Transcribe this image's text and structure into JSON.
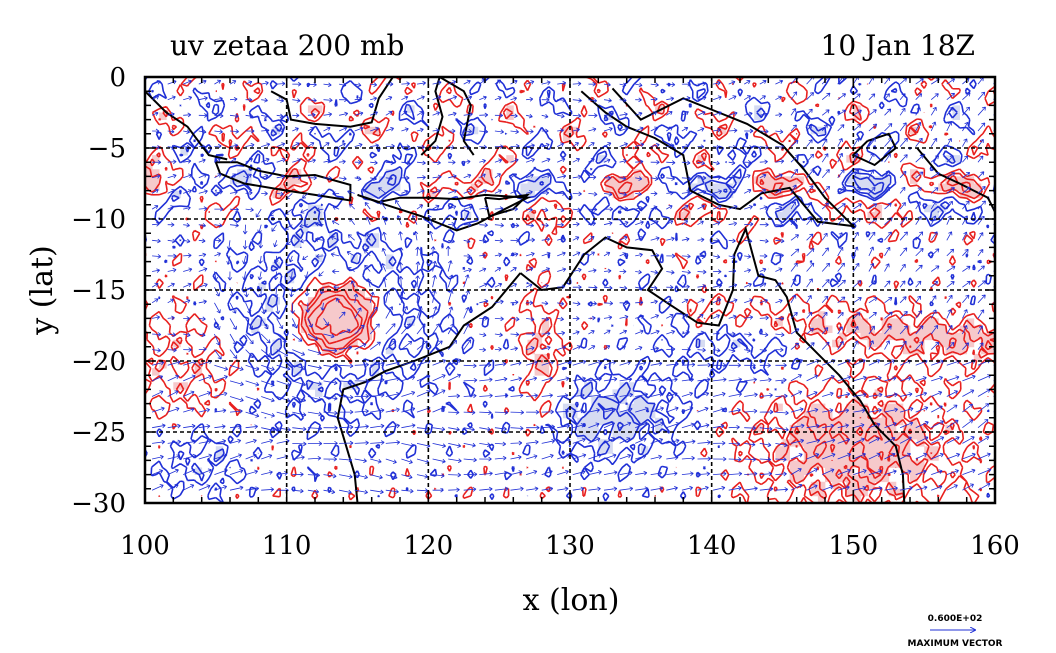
{
  "chart_data": {
    "type": "contour",
    "title_left": "uv zetaa 200 mb",
    "title_right": "10 Jan 18Z",
    "xlabel": "x (lon)",
    "ylabel": "y (lat)",
    "xlim": [
      100,
      160
    ],
    "ylim": [
      -30,
      0
    ],
    "x_ticks": [
      100,
      110,
      120,
      130,
      140,
      150,
      160
    ],
    "x_tick_labels": [
      "100",
      "110",
      "120",
      "130",
      "140",
      "150",
      "160"
    ],
    "y_ticks": [
      0,
      -5,
      -10,
      -15,
      -20,
      -25,
      -30
    ],
    "y_tick_labels": [
      "0",
      "−5",
      "−10",
      "−15",
      "−20",
      "−25",
      "−30"
    ],
    "grid": true,
    "legend": "bottom-right",
    "positive_color": "#e8201e",
    "negative_color": "#1f2fd6",
    "positive_fill": "#f6c9cb",
    "negative_fill": "#d6dbf2",
    "vector_color": "#1f2fd6",
    "vector_reference": {
      "value_text": "0.600E+02",
      "label": "MAXIMUM VECTOR"
    }
  }
}
